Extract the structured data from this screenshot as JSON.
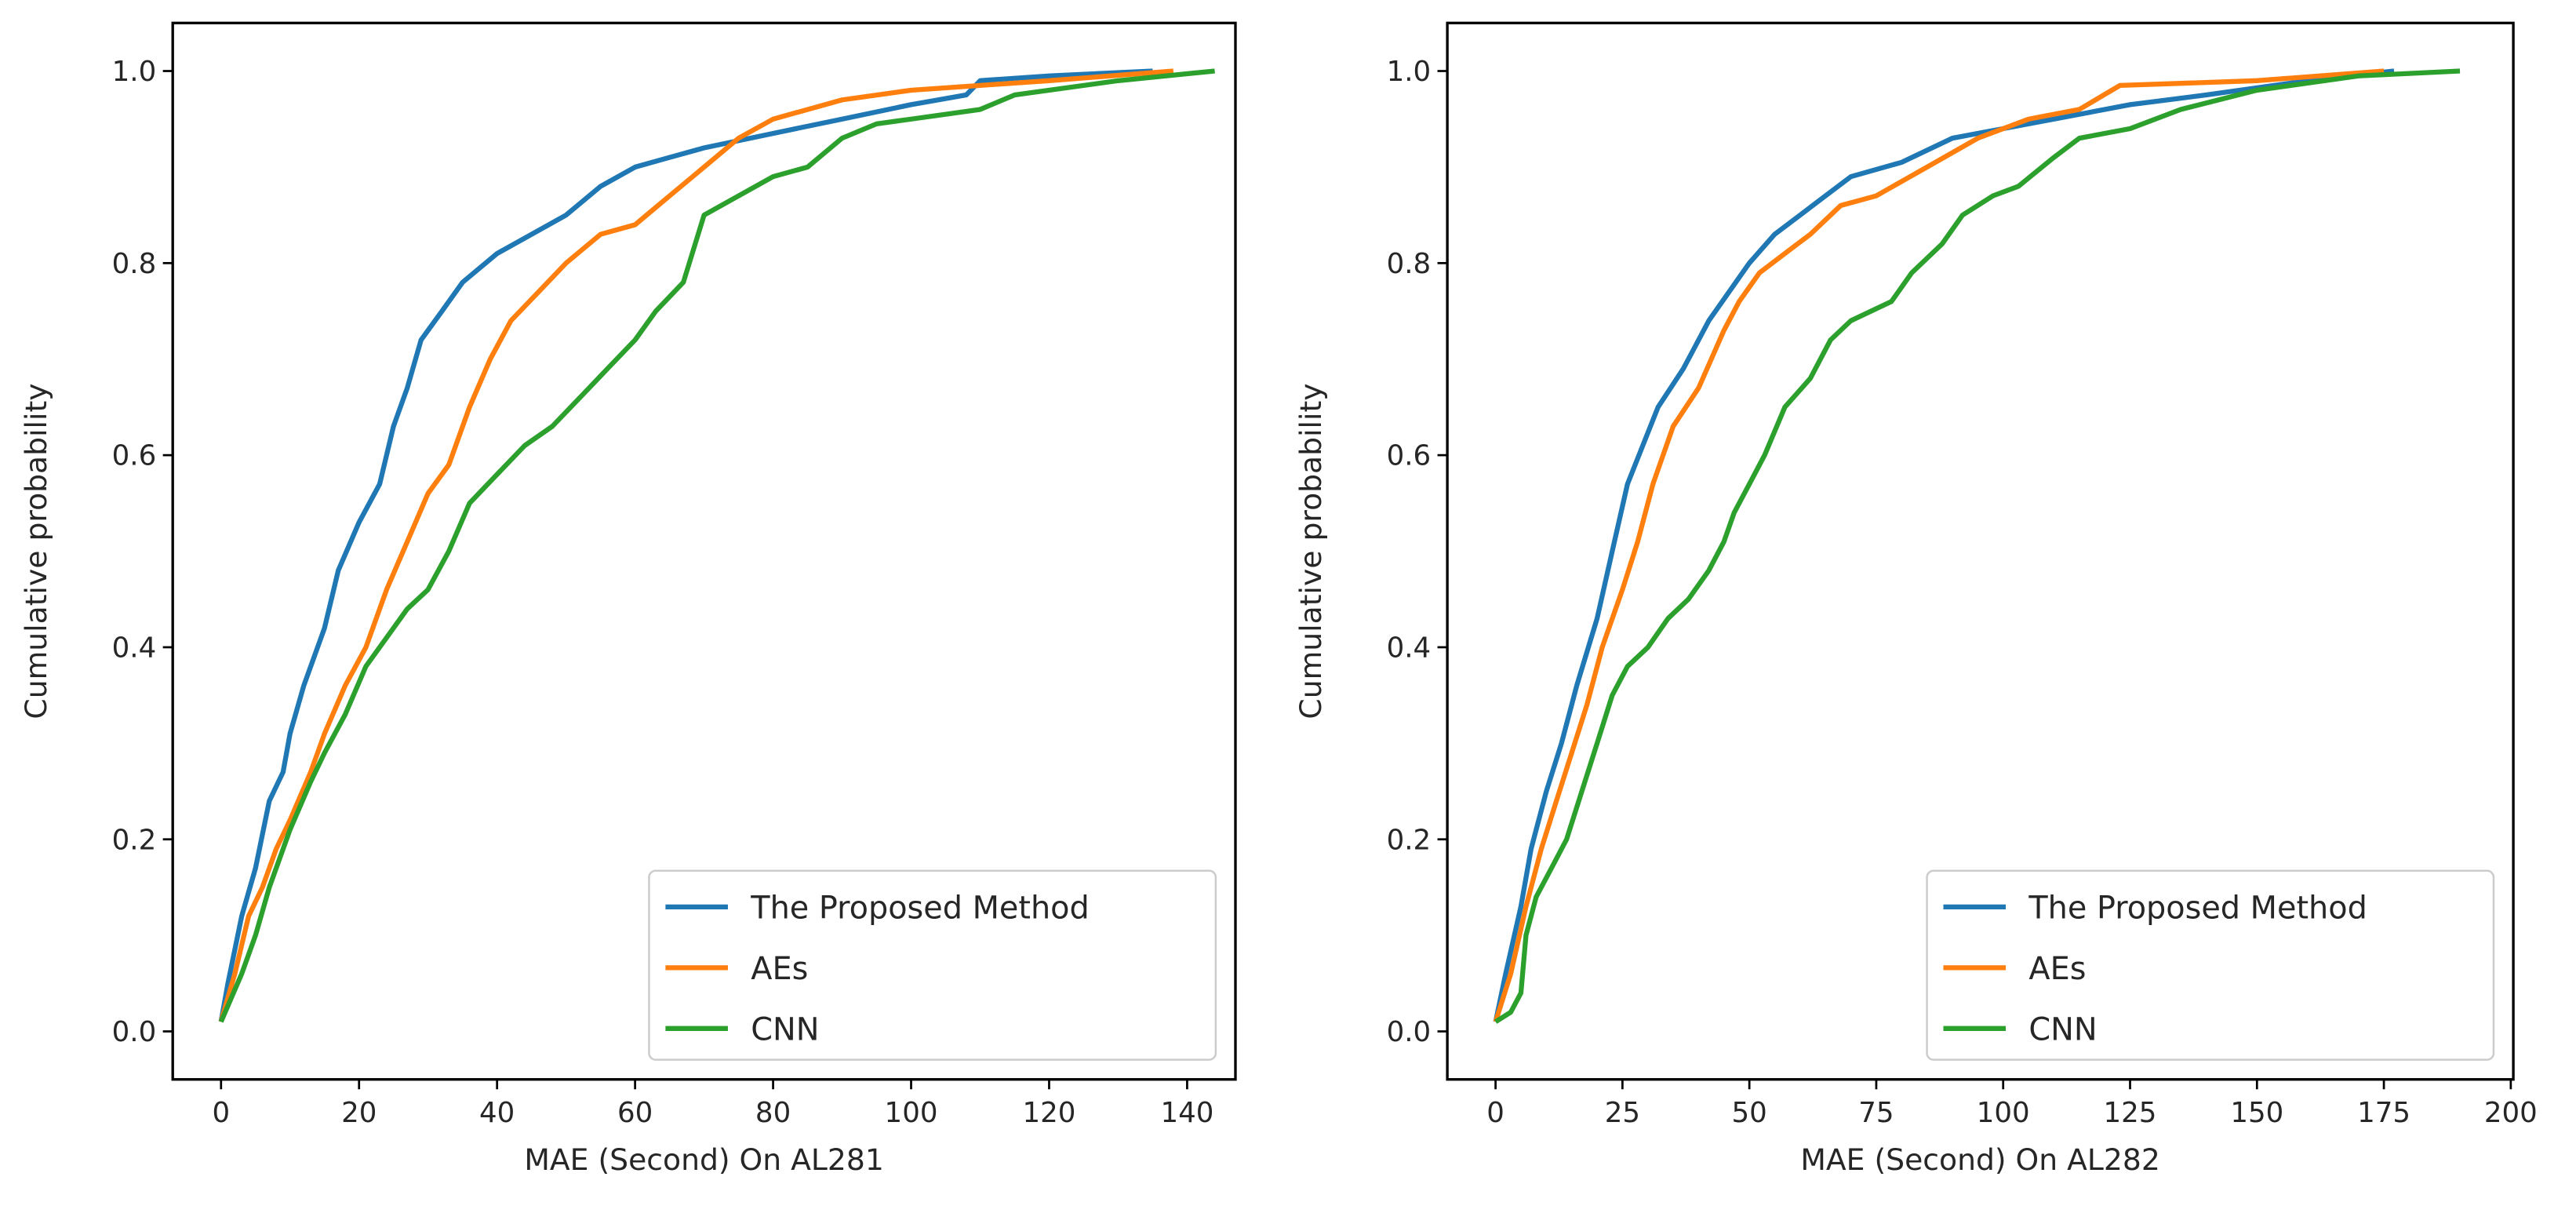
{
  "chart_data": [
    {
      "type": "line",
      "title": "",
      "xlabel": "MAE (Second) On AL281",
      "ylabel": "Cumulative probability",
      "xlim": [
        -7,
        147
      ],
      "ylim": [
        -0.05,
        1.05
      ],
      "xticks": [
        0,
        20,
        40,
        60,
        80,
        100,
        120,
        140
      ],
      "xtick_labels": [
        "0",
        "20",
        "40",
        "60",
        "80",
        "100",
        "120",
        "140"
      ],
      "yticks": [
        0,
        0.2,
        0.4,
        0.6,
        0.8,
        1.0
      ],
      "ytick_labels": [
        "0.0",
        "0.2",
        "0.4",
        "0.6",
        "0.8",
        "1.0"
      ],
      "grid": false,
      "legend_position": "lower-right",
      "series": [
        {
          "name": "The Proposed Method",
          "color": "#1f77b4",
          "x": [
            0,
            1,
            3,
            5,
            7,
            9,
            10,
            12,
            15,
            17,
            20,
            23,
            25,
            27,
            29,
            32,
            35,
            40,
            45,
            50,
            55,
            60,
            65,
            70,
            80,
            90,
            100,
            108,
            110,
            120,
            135
          ],
          "y": [
            0.01,
            0.05,
            0.12,
            0.17,
            0.24,
            0.27,
            0.31,
            0.36,
            0.42,
            0.48,
            0.53,
            0.57,
            0.63,
            0.67,
            0.72,
            0.75,
            0.78,
            0.81,
            0.83,
            0.85,
            0.88,
            0.9,
            0.91,
            0.92,
            0.935,
            0.95,
            0.965,
            0.975,
            0.99,
            0.995,
            1.0
          ]
        },
        {
          "name": "AEs",
          "color": "#ff7f0e",
          "x": [
            0,
            2,
            4,
            6,
            8,
            10,
            13,
            15,
            18,
            21,
            24,
            27,
            30,
            33,
            36,
            39,
            42,
            46,
            50,
            55,
            60,
            65,
            70,
            75,
            80,
            90,
            100,
            110,
            120,
            138
          ],
          "y": [
            0.01,
            0.06,
            0.12,
            0.15,
            0.19,
            0.22,
            0.27,
            0.31,
            0.36,
            0.4,
            0.46,
            0.51,
            0.56,
            0.59,
            0.65,
            0.7,
            0.74,
            0.77,
            0.8,
            0.83,
            0.84,
            0.87,
            0.9,
            0.93,
            0.95,
            0.97,
            0.98,
            0.985,
            0.99,
            1.0
          ]
        },
        {
          "name": "CNN",
          "color": "#2ca02c",
          "x": [
            0,
            3,
            5,
            7,
            10,
            13,
            15,
            18,
            21,
            24,
            27,
            30,
            33,
            36,
            40,
            44,
            48,
            52,
            56,
            60,
            63,
            67,
            70,
            75,
            80,
            85,
            90,
            95,
            100,
            110,
            115,
            130,
            144
          ],
          "y": [
            0.01,
            0.06,
            0.1,
            0.15,
            0.21,
            0.26,
            0.29,
            0.33,
            0.38,
            0.41,
            0.44,
            0.46,
            0.5,
            0.55,
            0.58,
            0.61,
            0.63,
            0.66,
            0.69,
            0.72,
            0.75,
            0.78,
            0.85,
            0.87,
            0.89,
            0.9,
            0.93,
            0.945,
            0.95,
            0.96,
            0.975,
            0.99,
            1.0
          ]
        }
      ]
    },
    {
      "type": "line",
      "title": "",
      "xlabel": "MAE (Second) On AL282",
      "ylabel": "Cumulative probability",
      "xlim": [
        -9.5,
        200.5
      ],
      "ylim": [
        -0.05,
        1.05
      ],
      "xticks": [
        0,
        25,
        50,
        75,
        100,
        125,
        150,
        175,
        200
      ],
      "xtick_labels": [
        "0",
        "25",
        "50",
        "75",
        "100",
        "125",
        "150",
        "175",
        "200"
      ],
      "yticks": [
        0,
        0.2,
        0.4,
        0.6,
        0.8,
        1.0
      ],
      "ytick_labels": [
        "0.0",
        "0.2",
        "0.4",
        "0.6",
        "0.8",
        "1.0"
      ],
      "grid": false,
      "legend_position": "lower-right",
      "series": [
        {
          "name": "The Proposed Method",
          "color": "#1f77b4",
          "x": [
            0,
            2,
            5,
            7,
            10,
            13,
            16,
            20,
            23,
            26,
            29,
            32,
            37,
            42,
            46,
            50,
            55,
            60,
            65,
            70,
            80,
            90,
            100,
            110,
            125,
            140,
            160,
            177
          ],
          "y": [
            0.01,
            0.06,
            0.13,
            0.19,
            0.25,
            0.3,
            0.36,
            0.43,
            0.5,
            0.57,
            0.61,
            0.65,
            0.69,
            0.74,
            0.77,
            0.8,
            0.83,
            0.85,
            0.87,
            0.89,
            0.905,
            0.93,
            0.94,
            0.95,
            0.965,
            0.975,
            0.99,
            1.0
          ]
        },
        {
          "name": "AEs",
          "color": "#ff7f0e",
          "x": [
            0,
            3,
            6,
            9,
            12,
            15,
            18,
            21,
            25,
            28,
            31,
            35,
            40,
            45,
            48,
            52,
            57,
            62,
            68,
            75,
            85,
            95,
            105,
            115,
            123,
            150,
            175
          ],
          "y": [
            0.01,
            0.06,
            0.13,
            0.19,
            0.24,
            0.29,
            0.34,
            0.4,
            0.46,
            0.51,
            0.57,
            0.63,
            0.67,
            0.73,
            0.76,
            0.79,
            0.81,
            0.83,
            0.86,
            0.87,
            0.9,
            0.93,
            0.95,
            0.96,
            0.985,
            0.99,
            1.0
          ]
        },
        {
          "name": "CNN",
          "color": "#2ca02c",
          "x": [
            0,
            3,
            5,
            6,
            8,
            11,
            14,
            17,
            20,
            23,
            26,
            30,
            34,
            38,
            42,
            45,
            47,
            50,
            53,
            57,
            62,
            66,
            70,
            78,
            82,
            88,
            92,
            98,
            103,
            110,
            115,
            125,
            135,
            150,
            170,
            190
          ],
          "y": [
            0.01,
            0.02,
            0.04,
            0.1,
            0.14,
            0.17,
            0.2,
            0.25,
            0.3,
            0.35,
            0.38,
            0.4,
            0.43,
            0.45,
            0.48,
            0.51,
            0.54,
            0.57,
            0.6,
            0.65,
            0.68,
            0.72,
            0.74,
            0.76,
            0.79,
            0.82,
            0.85,
            0.87,
            0.88,
            0.91,
            0.93,
            0.94,
            0.96,
            0.98,
            0.995,
            1.0
          ]
        }
      ]
    }
  ]
}
